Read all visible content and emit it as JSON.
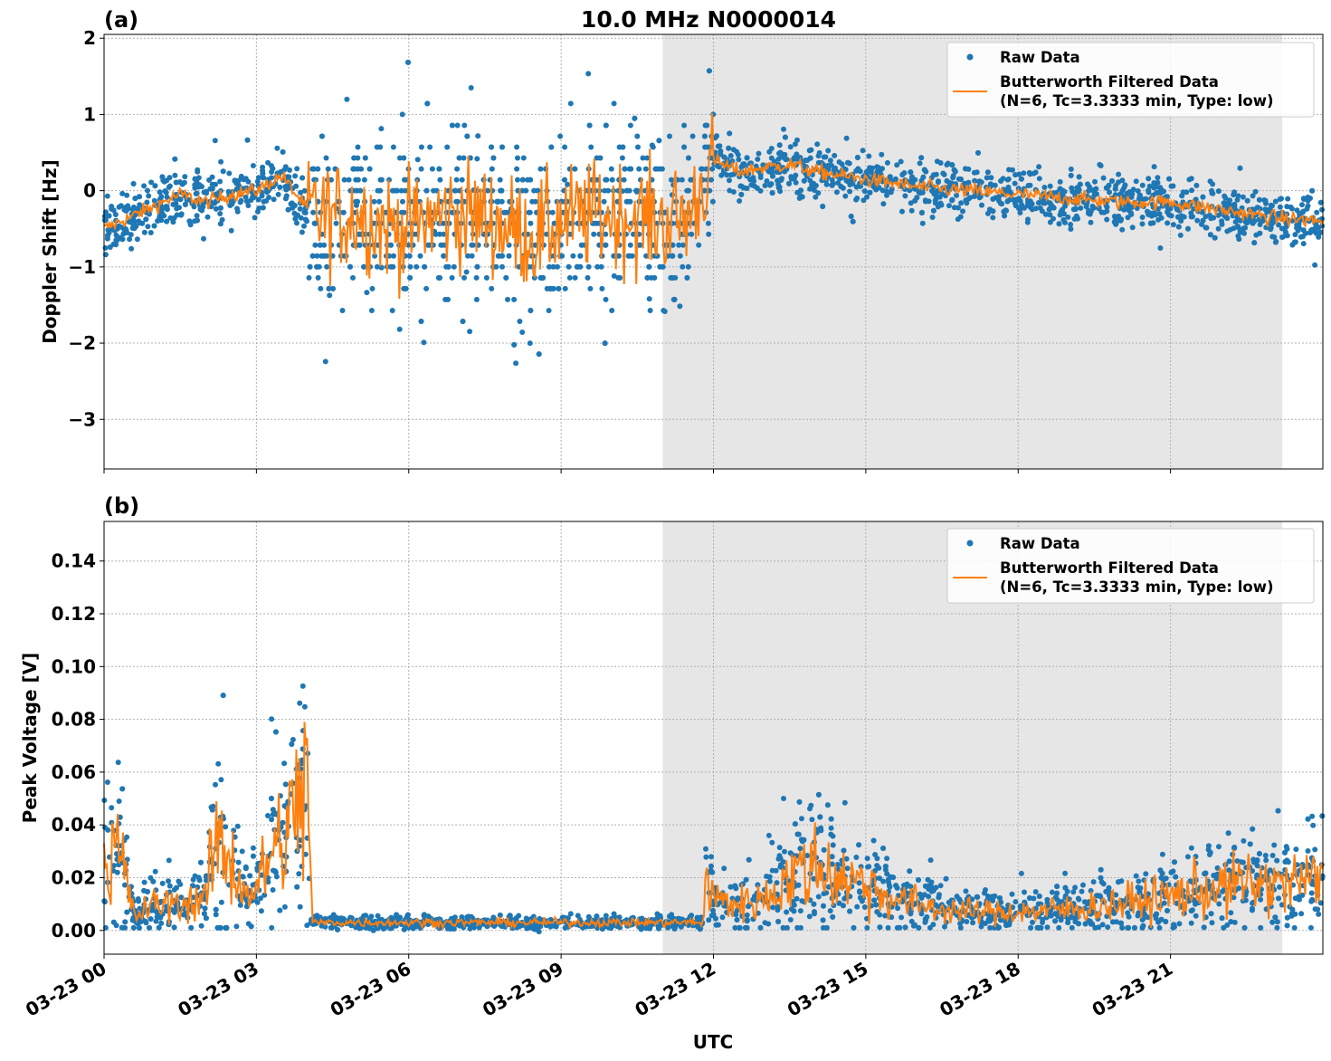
{
  "chart_data": [
    {
      "type": "scatter",
      "panel_label": "(a)",
      "title": "10.0 MHz N0000014",
      "ylabel": "Doppler Shift [Hz]",
      "xlabel": "",
      "x_unit": "hours UTC on 03-23",
      "xlim": [
        0,
        24
      ],
      "ylim": [
        -3.65,
        2.05
      ],
      "yticks": [
        2,
        1,
        0,
        -1,
        -2,
        -3
      ],
      "ytick_labels": [
        "2",
        "1",
        "0",
        "−1",
        "−2",
        "−3"
      ],
      "grid": true,
      "legend_location": "top-right",
      "shaded_region": {
        "x_start": 11.0,
        "x_end": 23.2
      },
      "series": [
        {
          "name": "Raw Data",
          "style": "points",
          "color": "#1f77b4"
        },
        {
          "name": "Butterworth Filtered Data\n(N=6, Tc=3.3333 min, Type: low)",
          "style": "line",
          "color": "#ff7f0e",
          "x": [
            0,
            0.5,
            1,
            1.5,
            2,
            2.5,
            3,
            3.5,
            4,
            4.5,
            5,
            5.5,
            6,
            6.5,
            7,
            7.5,
            8,
            8.5,
            9,
            9.5,
            10,
            10.5,
            11,
            11.5,
            12,
            12.5,
            13,
            13.5,
            14,
            15,
            16,
            17,
            18,
            19,
            20,
            21,
            22,
            23,
            24
          ],
          "values": [
            -0.5,
            -0.35,
            -0.2,
            -0.05,
            -0.15,
            -0.05,
            0.0,
            0.2,
            -0.25,
            -0.35,
            -0.3,
            -0.45,
            -0.5,
            -0.35,
            -0.3,
            -0.35,
            -0.5,
            -0.6,
            -0.4,
            -0.35,
            -0.3,
            -0.35,
            -0.4,
            -0.35,
            0.4,
            0.25,
            0.3,
            0.35,
            0.25,
            0.15,
            0.05,
            0.0,
            -0.05,
            -0.1,
            -0.15,
            -0.15,
            -0.25,
            -0.35,
            -0.4
          ]
        }
      ]
    },
    {
      "type": "scatter",
      "panel_label": "(b)",
      "title": "",
      "ylabel": "Peak Voltage [V]",
      "xlabel": "UTC",
      "x_unit": "hours UTC on 03-23",
      "xlim": [
        0,
        24
      ],
      "ylim": [
        -0.009,
        0.155
      ],
      "yticks": [
        0.0,
        0.02,
        0.04,
        0.06,
        0.08,
        0.1,
        0.12,
        0.14
      ],
      "ytick_labels": [
        "0.00",
        "0.02",
        "0.04",
        "0.06",
        "0.08",
        "0.10",
        "0.12",
        "0.14"
      ],
      "xticks": [
        0,
        3,
        6,
        9,
        12,
        15,
        18,
        21
      ],
      "xtick_labels": [
        "03-23 00",
        "03-23 03",
        "03-23 06",
        "03-23 09",
        "03-23 12",
        "03-23 15",
        "03-23 18",
        "03-23 21"
      ],
      "grid": true,
      "legend_location": "top-right",
      "shaded_region": {
        "x_start": 11.0,
        "x_end": 23.2
      },
      "series": [
        {
          "name": "Raw Data",
          "style": "points",
          "color": "#1f77b4"
        },
        {
          "name": "Butterworth Filtered Data\n(N=6, Tc=3.3333 min, Type: low)",
          "style": "line",
          "color": "#ff7f0e",
          "x": [
            0,
            0.3,
            0.6,
            1,
            1.5,
            2,
            2.2,
            2.5,
            2.8,
            3,
            3.3,
            3.6,
            4.0,
            4.1,
            4.5,
            5,
            6,
            7,
            8,
            9,
            10,
            11,
            11.8,
            11.85,
            12,
            12.5,
            13,
            13.5,
            14,
            14.5,
            15,
            15.5,
            16,
            16.5,
            17,
            18,
            19,
            20,
            21,
            21.5,
            22,
            22.5,
            23,
            23.5,
            24
          ],
          "values": [
            0.025,
            0.03,
            0.005,
            0.01,
            0.01,
            0.012,
            0.035,
            0.025,
            0.015,
            0.015,
            0.03,
            0.035,
            0.06,
            0.003,
            0.003,
            0.003,
            0.003,
            0.003,
            0.003,
            0.003,
            0.003,
            0.003,
            0.003,
            0.02,
            0.012,
            0.01,
            0.012,
            0.02,
            0.025,
            0.02,
            0.018,
            0.012,
            0.01,
            0.008,
            0.007,
            0.007,
            0.008,
            0.01,
            0.013,
            0.015,
            0.016,
            0.018,
            0.017,
            0.018,
            0.02
          ]
        }
      ]
    }
  ]
}
